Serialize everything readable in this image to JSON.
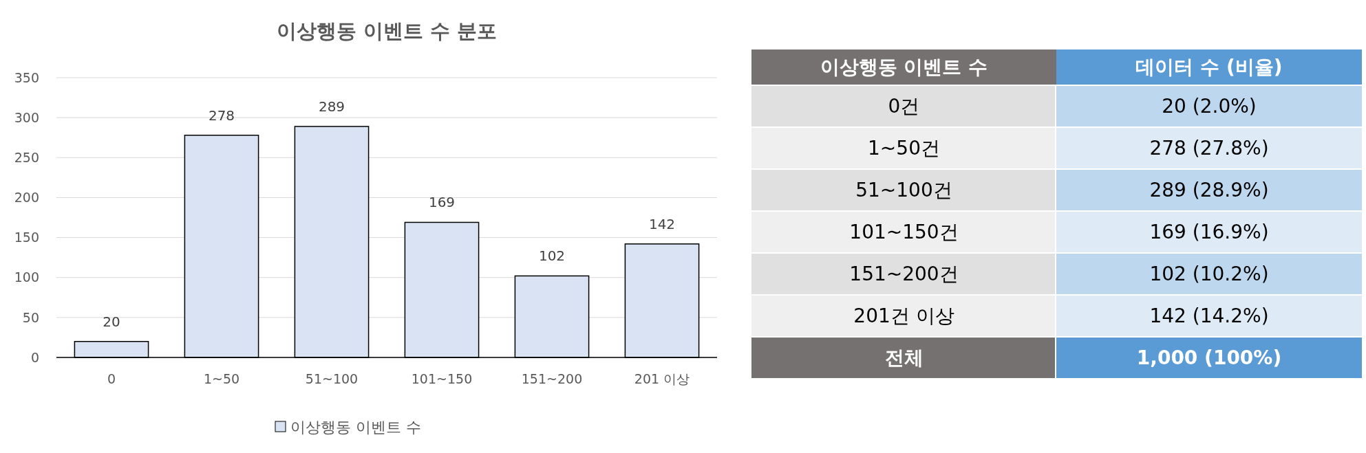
{
  "chart_data": [
    {
      "type": "bar",
      "title": "이상행동 이벤트 수 분포",
      "categories": [
        "0",
        "1~50",
        "51~100",
        "101~150",
        "151~200",
        "201 이상"
      ],
      "series": [
        {
          "name": "이상행동 이벤트 수",
          "color": "#dae3f3",
          "values": [
            20,
            278,
            289,
            169,
            102,
            142
          ]
        }
      ],
      "ylim": [
        0,
        350
      ],
      "yticks": [
        0,
        50,
        100,
        150,
        200,
        250,
        300,
        350
      ],
      "grid": "y",
      "legend": "bottom",
      "data_labels": true
    },
    {
      "type": "other",
      "xlabel": "이상행동 이벤트 수",
      "ylabel": "데이터 수 (비율)",
      "categories": [
        "0건",
        "1~50건",
        "51~100건",
        "101~150건",
        "151~200건",
        "201건 이상",
        "전체"
      ],
      "value_labels": [
        "20 (2.0%)",
        "278 (27.8%)",
        "289 (28.9%)",
        "169 (16.9%)",
        "102 (10.2%)",
        "142 (14.2%)",
        "1,000 (100%)"
      ]
    }
  ]
}
